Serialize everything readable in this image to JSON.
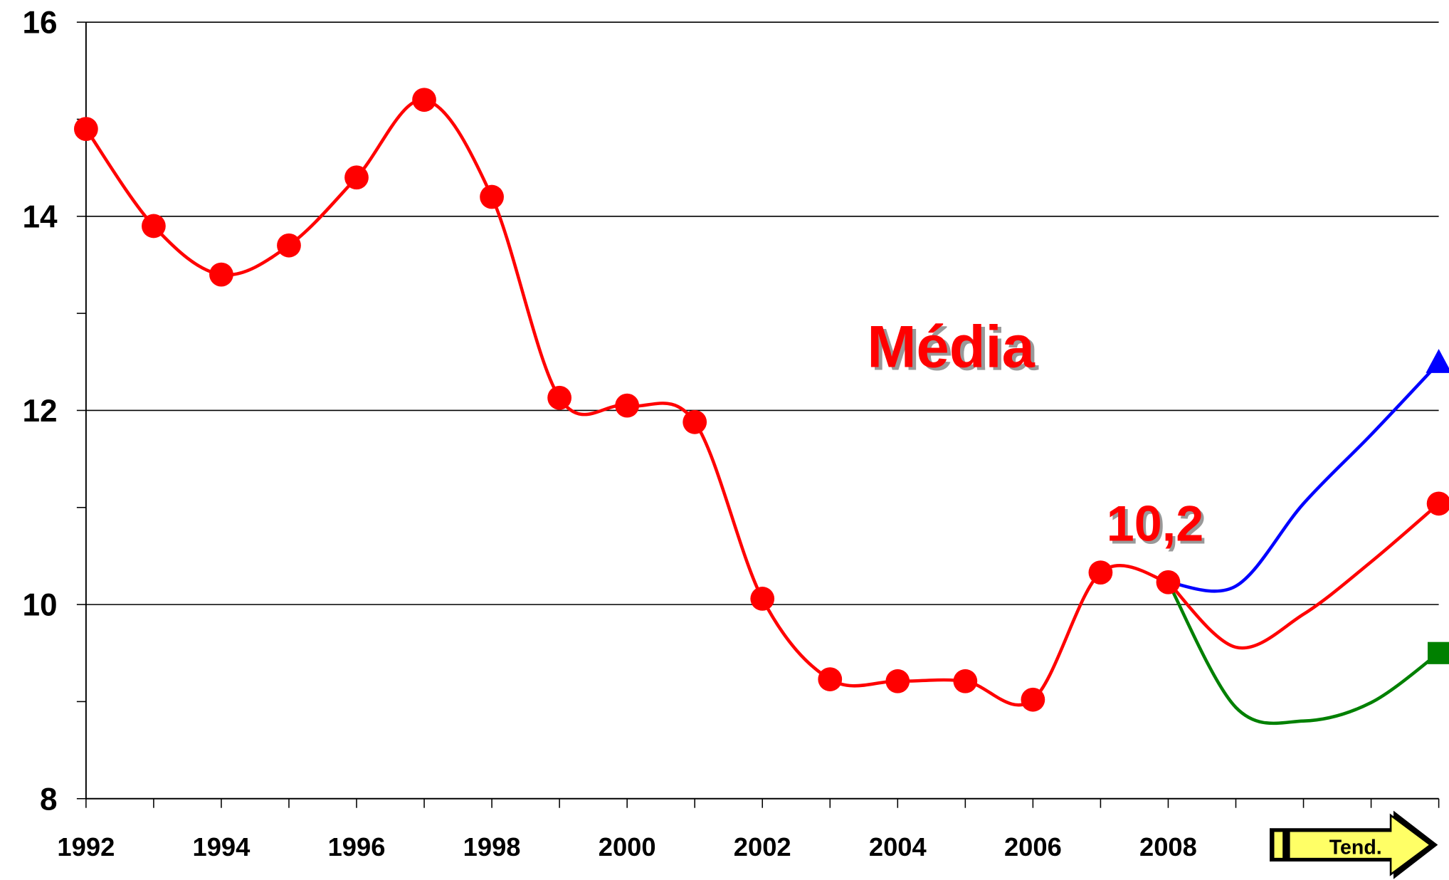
{
  "chart_data": {
    "type": "line",
    "xlim": [
      1992,
      2012
    ],
    "ylim": [
      8,
      16
    ],
    "xticks": [
      1992,
      1994,
      1996,
      1998,
      2000,
      2002,
      2004,
      2006,
      2008
    ],
    "xminor": [
      1993,
      1995,
      1997,
      1999,
      2001,
      2003,
      2005,
      2007,
      2009,
      2010,
      2011,
      2012
    ],
    "yticks": [
      8,
      10,
      12,
      14,
      16
    ],
    "yminor": [
      9,
      11,
      13,
      15
    ],
    "grid": true,
    "series": [
      {
        "color": "#ff0000",
        "marker": "circle",
        "x": [
          1992,
          1993,
          1994,
          1995,
          1996,
          1997,
          1998,
          1999,
          2000,
          2001,
          2002,
          2003,
          2004,
          2005,
          2006,
          2007,
          2008
        ],
        "values": [
          14.9,
          13.9,
          13.4,
          13.7,
          14.4,
          15.2,
          14.2,
          12.13,
          12.05,
          11.88,
          10.06,
          9.23,
          9.21,
          9.21,
          9.02,
          10.33,
          10.23
        ]
      },
      {
        "color": "#0000ff",
        "end_marker": "triangle",
        "x": [
          2008,
          2009,
          2010,
          2011,
          2012
        ],
        "values": [
          10.23,
          10.19,
          11.04,
          11.75,
          12.49
        ]
      },
      {
        "color": "#ff0000",
        "end_marker": "circle",
        "x": [
          2008,
          2009,
          2010,
          2011,
          2012
        ],
        "values": [
          10.23,
          9.56,
          9.9,
          10.44,
          11.04
        ]
      },
      {
        "color": "#008000",
        "end_marker": "square",
        "x": [
          2008,
          2009,
          2010,
          2011,
          2012
        ],
        "values": [
          10.23,
          8.94,
          8.8,
          8.99,
          9.5
        ]
      }
    ],
    "annotations": [
      {
        "text": "Média"
      },
      {
        "text": "10,2"
      }
    ]
  },
  "nav": {
    "label": "Tend."
  }
}
